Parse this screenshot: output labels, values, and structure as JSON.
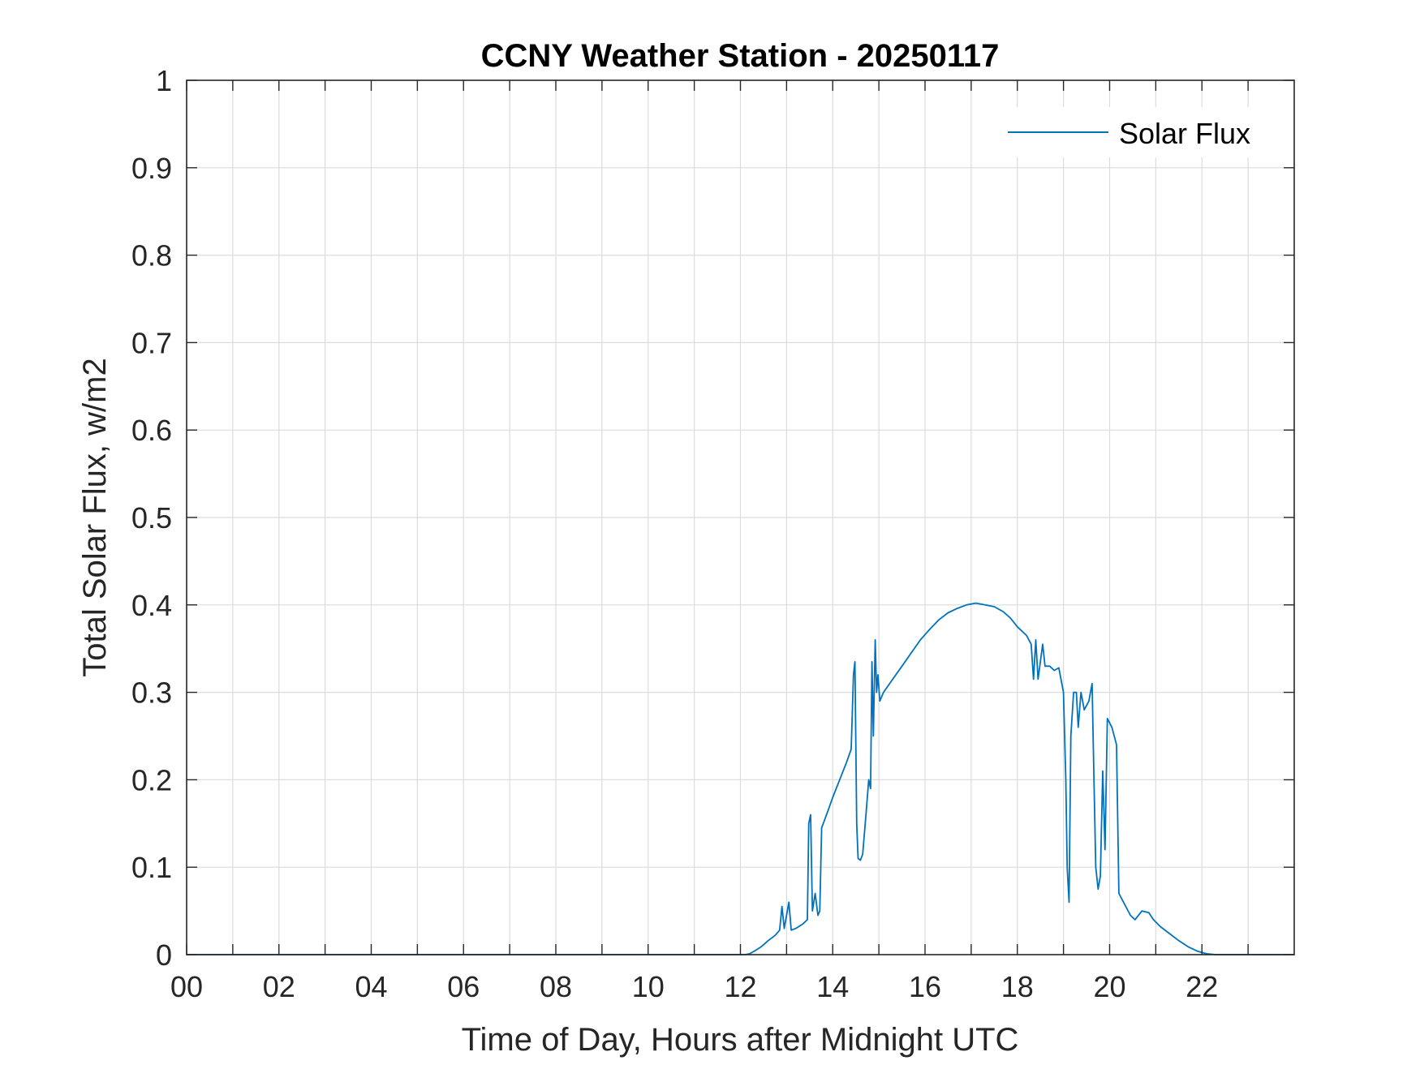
{
  "chart_data": {
    "type": "line",
    "title": "CCNY Weather Station - 20250117",
    "xlabel": "Time of Day, Hours after Midnight UTC",
    "ylabel": "Total Solar Flux, w/m2",
    "xlim": [
      0,
      24
    ],
    "ylim": [
      0,
      1
    ],
    "grid": true,
    "legend_position": "top-right",
    "x_ticks": [
      0,
      1,
      2,
      3,
      4,
      5,
      6,
      7,
      8,
      9,
      10,
      11,
      12,
      13,
      14,
      15,
      16,
      17,
      18,
      19,
      20,
      21,
      22,
      23
    ],
    "x_tick_labels": [
      {
        "value": 0,
        "label": "00"
      },
      {
        "value": 2,
        "label": "02"
      },
      {
        "value": 4,
        "label": "04"
      },
      {
        "value": 6,
        "label": "06"
      },
      {
        "value": 8,
        "label": "08"
      },
      {
        "value": 10,
        "label": "10"
      },
      {
        "value": 12,
        "label": "12"
      },
      {
        "value": 14,
        "label": "14"
      },
      {
        "value": 16,
        "label": "16"
      },
      {
        "value": 18,
        "label": "18"
      },
      {
        "value": 20,
        "label": "20"
      },
      {
        "value": 22,
        "label": "22"
      }
    ],
    "y_ticks": [
      {
        "value": 0,
        "label": "0"
      },
      {
        "value": 0.1,
        "label": "0.1"
      },
      {
        "value": 0.2,
        "label": "0.2"
      },
      {
        "value": 0.3,
        "label": "0.3"
      },
      {
        "value": 0.4,
        "label": "0.4"
      },
      {
        "value": 0.5,
        "label": "0.5"
      },
      {
        "value": 0.6,
        "label": "0.6"
      },
      {
        "value": 0.7,
        "label": "0.7"
      },
      {
        "value": 0.8,
        "label": "0.8"
      },
      {
        "value": 0.9,
        "label": "0.9"
      },
      {
        "value": 1,
        "label": "1"
      }
    ],
    "series": [
      {
        "name": "Solar Flux",
        "color": "#0072bd",
        "points": [
          [
            0,
            0
          ],
          [
            12.1,
            0
          ],
          [
            12.2,
            0.001
          ],
          [
            12.3,
            0.004
          ],
          [
            12.45,
            0.009
          ],
          [
            12.6,
            0.016
          ],
          [
            12.75,
            0.022
          ],
          [
            12.85,
            0.028
          ],
          [
            12.9,
            0.055
          ],
          [
            12.95,
            0.03
          ],
          [
            13.05,
            0.06
          ],
          [
            13.1,
            0.028
          ],
          [
            13.2,
            0.03
          ],
          [
            13.35,
            0.035
          ],
          [
            13.45,
            0.04
          ],
          [
            13.48,
            0.15
          ],
          [
            13.52,
            0.16
          ],
          [
            13.56,
            0.05
          ],
          [
            13.62,
            0.07
          ],
          [
            13.68,
            0.045
          ],
          [
            13.72,
            0.05
          ],
          [
            13.76,
            0.145
          ],
          [
            13.9,
            0.165
          ],
          [
            14.0,
            0.18
          ],
          [
            14.15,
            0.2
          ],
          [
            14.3,
            0.22
          ],
          [
            14.4,
            0.235
          ],
          [
            14.45,
            0.32
          ],
          [
            14.48,
            0.335
          ],
          [
            14.52,
            0.15
          ],
          [
            14.55,
            0.11
          ],
          [
            14.6,
            0.108
          ],
          [
            14.65,
            0.115
          ],
          [
            14.72,
            0.16
          ],
          [
            14.78,
            0.2
          ],
          [
            14.82,
            0.19
          ],
          [
            14.85,
            0.335
          ],
          [
            14.88,
            0.25
          ],
          [
            14.92,
            0.36
          ],
          [
            14.95,
            0.3
          ],
          [
            14.98,
            0.32
          ],
          [
            15.02,
            0.29
          ],
          [
            15.1,
            0.3
          ],
          [
            15.3,
            0.315
          ],
          [
            15.5,
            0.33
          ],
          [
            15.7,
            0.345
          ],
          [
            15.9,
            0.36
          ],
          [
            16.1,
            0.372
          ],
          [
            16.3,
            0.383
          ],
          [
            16.5,
            0.391
          ],
          [
            16.7,
            0.396
          ],
          [
            16.9,
            0.4
          ],
          [
            17.1,
            0.402
          ],
          [
            17.3,
            0.4
          ],
          [
            17.5,
            0.398
          ],
          [
            17.7,
            0.392
          ],
          [
            17.85,
            0.385
          ],
          [
            18.0,
            0.375
          ],
          [
            18.2,
            0.365
          ],
          [
            18.3,
            0.355
          ],
          [
            18.35,
            0.315
          ],
          [
            18.4,
            0.36
          ],
          [
            18.45,
            0.315
          ],
          [
            18.55,
            0.355
          ],
          [
            18.6,
            0.33
          ],
          [
            18.7,
            0.33
          ],
          [
            18.8,
            0.325
          ],
          [
            18.9,
            0.328
          ],
          [
            19.0,
            0.3
          ],
          [
            19.05,
            0.2
          ],
          [
            19.08,
            0.1
          ],
          [
            19.12,
            0.06
          ],
          [
            19.16,
            0.25
          ],
          [
            19.22,
            0.3
          ],
          [
            19.28,
            0.3
          ],
          [
            19.32,
            0.26
          ],
          [
            19.38,
            0.3
          ],
          [
            19.45,
            0.28
          ],
          [
            19.55,
            0.29
          ],
          [
            19.62,
            0.31
          ],
          [
            19.66,
            0.2
          ],
          [
            19.7,
            0.1
          ],
          [
            19.75,
            0.075
          ],
          [
            19.8,
            0.09
          ],
          [
            19.85,
            0.21
          ],
          [
            19.9,
            0.12
          ],
          [
            19.95,
            0.27
          ],
          [
            20.05,
            0.26
          ],
          [
            20.15,
            0.24
          ],
          [
            20.2,
            0.07
          ],
          [
            20.3,
            0.06
          ],
          [
            20.45,
            0.045
          ],
          [
            20.55,
            0.04
          ],
          [
            20.7,
            0.05
          ],
          [
            20.85,
            0.048
          ],
          [
            20.95,
            0.04
          ],
          [
            21.1,
            0.032
          ],
          [
            21.3,
            0.024
          ],
          [
            21.5,
            0.016
          ],
          [
            21.7,
            0.009
          ],
          [
            21.9,
            0.004
          ],
          [
            22.1,
            0.001
          ],
          [
            22.3,
            0
          ],
          [
            24,
            0
          ]
        ]
      }
    ]
  }
}
